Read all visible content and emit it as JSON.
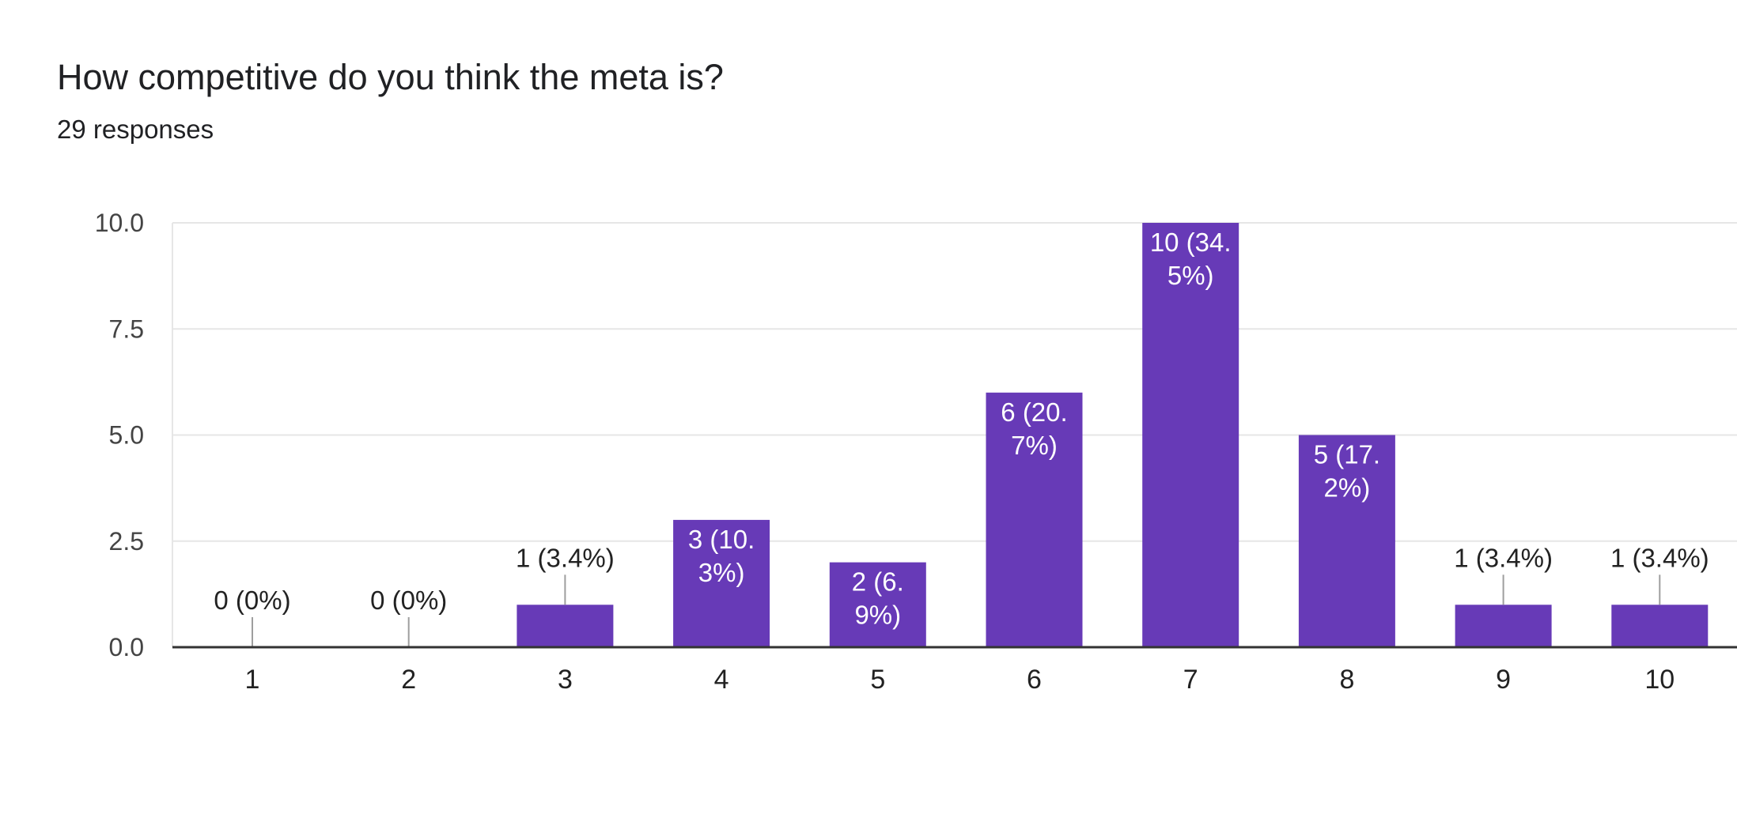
{
  "title": "How competitive do you think the meta is?",
  "subtitle": "29 responses",
  "colors": {
    "bar": "#673ab7",
    "grid": "#e6e6e6",
    "axis": "#333333",
    "leader": "#9e9e9e"
  },
  "chart_data": {
    "type": "bar",
    "title": "How competitive do you think the meta is?",
    "subtitle": "29 responses",
    "xlabel": "",
    "ylabel": "",
    "categories": [
      "1",
      "2",
      "3",
      "4",
      "5",
      "6",
      "7",
      "8",
      "9",
      "10"
    ],
    "values": [
      0,
      0,
      1,
      3,
      2,
      6,
      10,
      5,
      1,
      1
    ],
    "data_labels": [
      [
        "0 (0%)"
      ],
      [
        "0 (0%)"
      ],
      [
        "1 (3.4%)"
      ],
      [
        "3 (10.",
        "3%)"
      ],
      [
        "2 (6.",
        "9%)"
      ],
      [
        "6 (20.",
        "7%)"
      ],
      [
        "10 (34.",
        "5%)"
      ],
      [
        "5 (17.",
        "2%)"
      ],
      [
        "1 (3.4%)"
      ],
      [
        "1 (3.4%)"
      ]
    ],
    "ylim": [
      0,
      10
    ],
    "yticks": [
      "0.0",
      "2.5",
      "5.0",
      "7.5",
      "10.0"
    ],
    "grid": true,
    "legend": "none"
  }
}
